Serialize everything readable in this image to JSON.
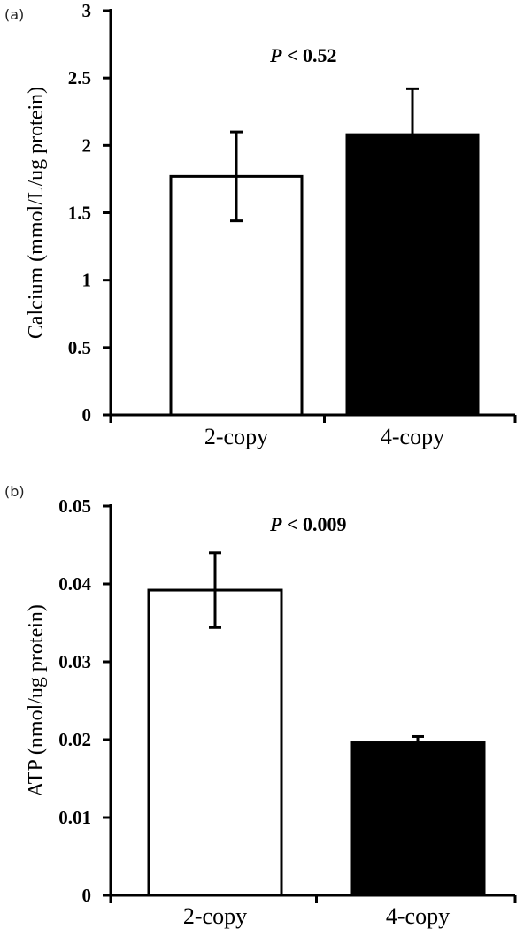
{
  "chart_data": [
    {
      "panel_label": "(a)",
      "type": "bar",
      "categories": [
        "2-copy",
        "4-copy"
      ],
      "values": [
        1.77,
        2.08
      ],
      "errors": [
        0.33,
        0.34
      ],
      "bar_colors": [
        "#ffffff",
        "#000000"
      ],
      "ylabel": "Calcium (mmol/L/ug protein)",
      "ylim": [
        0,
        3
      ],
      "yticks": [
        0,
        0.5,
        1,
        1.5,
        2,
        2.5,
        3
      ],
      "ytick_labels": [
        "0",
        "0.5",
        "1",
        "1.5",
        "2",
        "2.5",
        "3"
      ],
      "annotation": {
        "p": "P",
        "text": " < 0.52"
      }
    },
    {
      "panel_label": "(b)",
      "type": "bar",
      "categories": [
        "2-copy",
        "4-copy"
      ],
      "values": [
        0.0392,
        0.0196
      ],
      "errors": [
        0.0048,
        0.0008
      ],
      "bar_colors": [
        "#ffffff",
        "#000000"
      ],
      "ylabel": "ATP (nmol/ug protein)",
      "ylim": [
        0,
        0.05
      ],
      "yticks": [
        0,
        0.01,
        0.02,
        0.03,
        0.04,
        0.05
      ],
      "ytick_labels": [
        "0",
        "0.01",
        "0.02",
        "0.03",
        "0.04",
        "0.05"
      ],
      "annotation": {
        "p": "P",
        "text": " < 0.009"
      }
    }
  ]
}
